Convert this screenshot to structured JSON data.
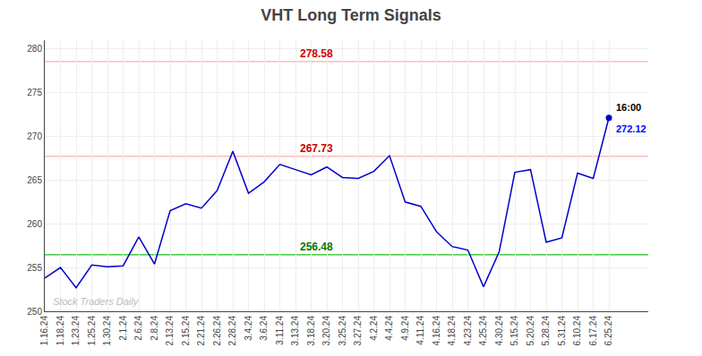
{
  "chart_data": {
    "type": "line",
    "title": "VHT Long Term Signals",
    "categories": [
      "1.16.24",
      "1.18.24",
      "1.23.24",
      "1.25.24",
      "1.30.24",
      "2.1.24",
      "2.6.24",
      "2.8.24",
      "2.13.24",
      "2.15.24",
      "2.21.24",
      "2.26.24",
      "2.28.24",
      "3.4.24",
      "3.6.24",
      "3.11.24",
      "3.13.24",
      "3.18.24",
      "3.20.24",
      "3.25.24",
      "3.27.24",
      "4.2.24",
      "4.4.24",
      "4.9.24",
      "4.11.24",
      "4.16.24",
      "4.18.24",
      "4.23.24",
      "4.25.24",
      "4.30.24",
      "5.15.24",
      "5.20.24",
      "5.28.24",
      "5.31.24",
      "6.10.24",
      "6.17.24",
      "6.25.24"
    ],
    "values": [
      253.8,
      255.0,
      252.7,
      255.3,
      255.1,
      255.2,
      258.5,
      255.4,
      261.5,
      262.3,
      261.8,
      263.8,
      268.3,
      263.5,
      264.8,
      266.8,
      266.2,
      265.6,
      266.5,
      265.3,
      265.2,
      266.0,
      267.8,
      262.5,
      262.0,
      259.1,
      257.4,
      257.0,
      252.8,
      256.8,
      265.9,
      266.2,
      257.9,
      258.4,
      265.8,
      265.2,
      272.12
    ],
    "color": "#0000cc",
    "hlines": [
      {
        "value": 278.58,
        "label": "278.58",
        "color": "#ffbbbb",
        "label_color": "#cc0000"
      },
      {
        "value": 267.73,
        "label": "267.73",
        "color": "#ffbbbb",
        "label_color": "#cc0000"
      },
      {
        "value": 256.48,
        "label": "256.48",
        "color": "#44cc44",
        "label_color": "#007700"
      }
    ],
    "annotations": [
      {
        "text": "16:00",
        "color": "#000000"
      },
      {
        "text": "272.12",
        "color": "#0000ff"
      }
    ],
    "watermark": {
      "text": "Stock Traders Daily",
      "color": "#bbbbbb"
    },
    "ylim": [
      250,
      281
    ],
    "yticks": [
      250,
      255,
      260,
      265,
      270,
      275,
      280
    ],
    "grid": true
  }
}
